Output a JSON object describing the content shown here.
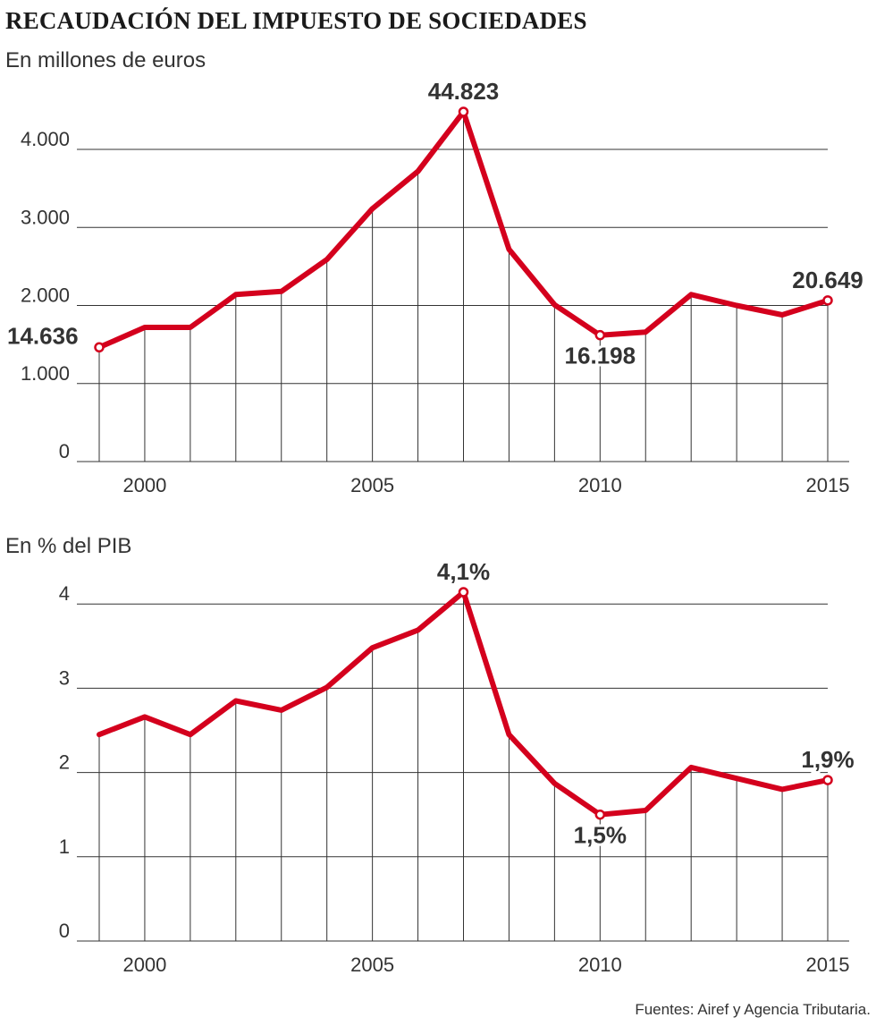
{
  "title": "RECAUDACIÓN DEL IMPUESTO DE SOCIEDADES",
  "source": "Fuentes: Airef y Agencia Tributaria.",
  "colors": {
    "line": "#d4001d",
    "grid": "#333333",
    "text": "#333333"
  },
  "chart_data": [
    {
      "type": "line",
      "subtitle": "En millones de euros",
      "x": [
        1999,
        2000,
        2001,
        2002,
        2003,
        2004,
        2005,
        2006,
        2007,
        2008,
        2009,
        2010,
        2011,
        2012,
        2013,
        2014,
        2015
      ],
      "y": [
        1464,
        1720,
        1720,
        2140,
        2180,
        2590,
        3240,
        3720,
        4482,
        2720,
        2010,
        1620,
        1660,
        2140,
        2000,
        1880,
        2065
      ],
      "xticks": [
        2000,
        2005,
        2010,
        2015
      ],
      "xtick_labels": [
        "2000",
        "2005",
        "2010",
        "2015"
      ],
      "yticks": [
        0,
        1000,
        2000,
        3000,
        4000
      ],
      "ytick_labels": [
        "0",
        "1.000",
        "2.000",
        "3.000",
        "4.000"
      ],
      "ylim": [
        0,
        4482
      ],
      "xlim": [
        1999,
        2015
      ],
      "grid": true,
      "annotations": [
        {
          "x": 1999,
          "text": "14.636",
          "anchor": "start",
          "pos": "above-left"
        },
        {
          "x": 2007,
          "text": "44.823",
          "anchor": "middle",
          "pos": "above"
        },
        {
          "x": 2010,
          "text": "16.198",
          "anchor": "middle",
          "pos": "below"
        },
        {
          "x": 2015,
          "text": "20.649",
          "anchor": "middle",
          "pos": "above"
        }
      ]
    },
    {
      "type": "line",
      "subtitle": "En % del PIB",
      "x": [
        1999,
        2000,
        2001,
        2002,
        2003,
        2004,
        2005,
        2006,
        2007,
        2008,
        2009,
        2010,
        2011,
        2012,
        2013,
        2014,
        2015
      ],
      "y": [
        2.45,
        2.66,
        2.45,
        2.85,
        2.74,
        3.01,
        3.48,
        3.69,
        4.14,
        2.45,
        1.87,
        1.5,
        1.55,
        2.06,
        1.93,
        1.8,
        1.91
      ],
      "xticks": [
        2000,
        2005,
        2010,
        2015
      ],
      "xtick_labels": [
        "2000",
        "2005",
        "2010",
        "2015"
      ],
      "yticks": [
        0,
        1,
        2,
        3,
        4
      ],
      "ytick_labels": [
        "0",
        "1",
        "2",
        "3",
        "4"
      ],
      "ylim": [
        0,
        4.14
      ],
      "xlim": [
        1999,
        2015
      ],
      "grid": true,
      "annotations": [
        {
          "x": 2007,
          "text": "4,1%",
          "anchor": "middle",
          "pos": "above"
        },
        {
          "x": 2010,
          "text": "1,5%",
          "anchor": "middle",
          "pos": "below"
        },
        {
          "x": 2015,
          "text": "1,9%",
          "anchor": "middle",
          "pos": "above"
        }
      ]
    }
  ]
}
